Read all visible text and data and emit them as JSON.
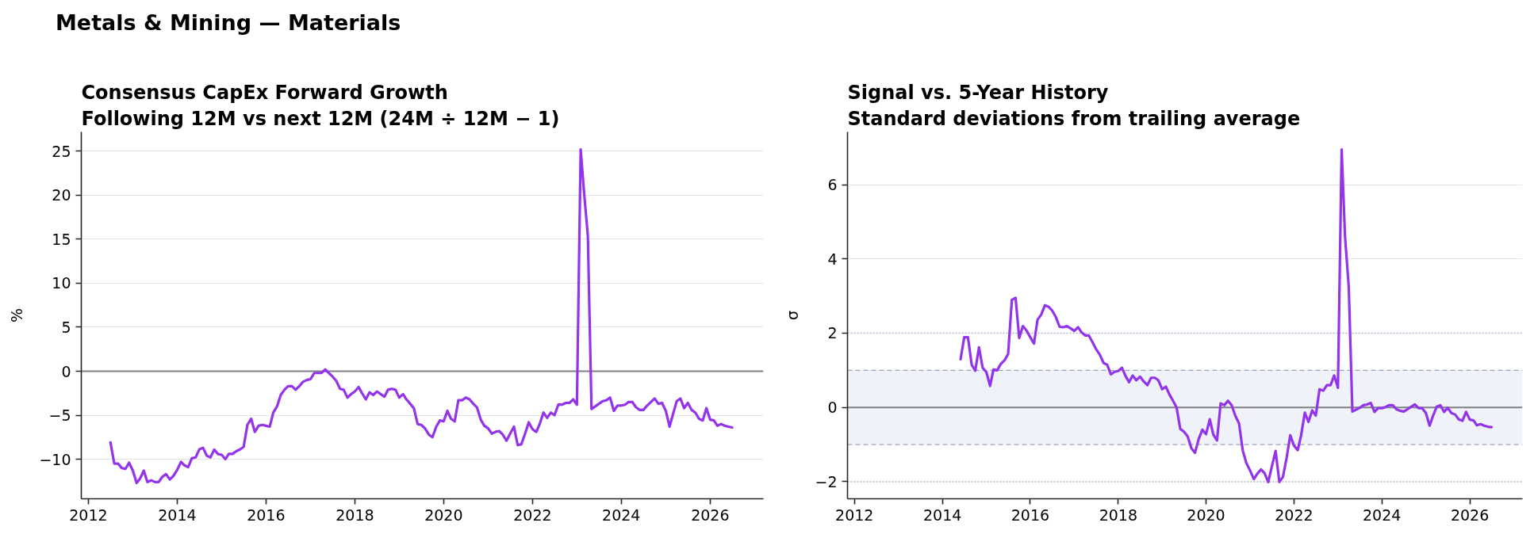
{
  "chart_data": [
    {
      "type": "line",
      "annotations": [
        "Metals & Mining — Materials"
      ],
      "title": "Consensus CapEx Forward Growth",
      "subtitle": "Following 12M vs next 12M (24M ÷ 12M − 1)",
      "ylabel": "%",
      "x": [
        "2012-07",
        "2012-08",
        "2012-09",
        "2012-10",
        "2012-11",
        "2012-12",
        "2013-01",
        "2013-02",
        "2013-03",
        "2013-04",
        "2013-05",
        "2013-06",
        "2013-07",
        "2013-08",
        "2013-09",
        "2013-10",
        "2013-11",
        "2013-12",
        "2014-01",
        "2014-02",
        "2014-03",
        "2014-04",
        "2014-05",
        "2014-06",
        "2014-07",
        "2014-08",
        "2014-09",
        "2014-10",
        "2014-11",
        "2014-12",
        "2015-01",
        "2015-02",
        "2015-03",
        "2015-04",
        "2015-05",
        "2015-06",
        "2015-07",
        "2015-08",
        "2015-09",
        "2015-10",
        "2015-11",
        "2015-12",
        "2016-01",
        "2016-02",
        "2016-03",
        "2016-04",
        "2016-05",
        "2016-06",
        "2016-07",
        "2016-08",
        "2016-09",
        "2016-10",
        "2016-11",
        "2016-12",
        "2017-01",
        "2017-02",
        "2017-03",
        "2017-04",
        "2017-05",
        "2017-06",
        "2017-07",
        "2017-08",
        "2017-09",
        "2017-10",
        "2017-11",
        "2017-12",
        "2018-01",
        "2018-02",
        "2018-03",
        "2018-04",
        "2018-05",
        "2018-06",
        "2018-07",
        "2018-08",
        "2018-09",
        "2018-10",
        "2018-11",
        "2018-12",
        "2019-01",
        "2019-02",
        "2019-03",
        "2019-04",
        "2019-05",
        "2019-06",
        "2019-07",
        "2019-08",
        "2019-09",
        "2019-10",
        "2019-11",
        "2019-12",
        "2020-01",
        "2020-02",
        "2020-03",
        "2020-04",
        "2020-05",
        "2020-06",
        "2020-07",
        "2020-08",
        "2020-09",
        "2020-10",
        "2020-11",
        "2020-12",
        "2021-01",
        "2021-02",
        "2021-03",
        "2021-04",
        "2021-05",
        "2021-06",
        "2021-07",
        "2021-08",
        "2021-09",
        "2021-10",
        "2021-11",
        "2021-12",
        "2022-01",
        "2022-02",
        "2022-03",
        "2022-04",
        "2022-05",
        "2022-06",
        "2022-07",
        "2022-08",
        "2022-09",
        "2022-10",
        "2022-11",
        "2022-12",
        "2023-01",
        "2023-02",
        "2023-03",
        "2023-04",
        "2023-05",
        "2023-06",
        "2023-07",
        "2023-08",
        "2023-09",
        "2023-10",
        "2023-11",
        "2023-12",
        "2024-01",
        "2024-02",
        "2024-03",
        "2024-04",
        "2024-05",
        "2024-06",
        "2024-07",
        "2024-08",
        "2024-09",
        "2024-10",
        "2024-11",
        "2024-12",
        "2025-01",
        "2025-02",
        "2025-03",
        "2025-04",
        "2025-05",
        "2025-06",
        "2025-07",
        "2025-08",
        "2025-09",
        "2025-10",
        "2025-11",
        "2025-12",
        "2026-01",
        "2026-02",
        "2026-03",
        "2026-04",
        "2026-05",
        "2026-06",
        "2026-07"
      ],
      "series": [
        {
          "color": "#9333ea",
          "values": [
            -8.1,
            -10.5,
            -10.5,
            -11.0,
            -11.1,
            -10.4,
            -11.3,
            -12.7,
            -12.2,
            -11.3,
            -12.6,
            -12.4,
            -12.6,
            -12.6,
            -12.0,
            -11.7,
            -12.3,
            -11.9,
            -11.2,
            -10.3,
            -10.7,
            -10.9,
            -9.9,
            -9.8,
            -8.9,
            -8.7,
            -9.6,
            -9.8,
            -8.9,
            -9.4,
            -9.5,
            -10.0,
            -9.4,
            -9.4,
            -9.1,
            -8.9,
            -8.6,
            -6.1,
            -5.4,
            -6.9,
            -6.2,
            -6.1,
            -6.2,
            -6.3,
            -4.7,
            -4.0,
            -2.7,
            -2.1,
            -1.7,
            -1.7,
            -2.1,
            -1.7,
            -1.2,
            -1.0,
            -0.9,
            -0.2,
            -0.2,
            -0.2,
            0.2,
            -0.2,
            -0.6,
            -1.1,
            -2.0,
            -2.1,
            -3.0,
            -2.6,
            -2.3,
            -1.8,
            -2.5,
            -3.2,
            -2.4,
            -2.7,
            -2.3,
            -2.6,
            -2.9,
            -2.1,
            -2.0,
            -2.1,
            -3.0,
            -2.6,
            -3.2,
            -3.7,
            -4.2,
            -6.0,
            -6.1,
            -6.5,
            -7.2,
            -7.5,
            -6.3,
            -5.6,
            -5.7,
            -4.5,
            -5.4,
            -5.7,
            -3.3,
            -3.3,
            -3.0,
            -3.2,
            -3.7,
            -4.1,
            -5.5,
            -6.2,
            -6.5,
            -7.1,
            -6.9,
            -6.8,
            -7.2,
            -7.9,
            -7.1,
            -6.3,
            -8.4,
            -8.3,
            -7.1,
            -5.8,
            -6.6,
            -6.9,
            -6.0,
            -4.7,
            -5.3,
            -4.7,
            -5.0,
            -3.8,
            -3.8,
            -3.6,
            -3.6,
            -3.2,
            -3.8,
            25.2,
            20.3,
            15.4,
            -4.3,
            -4.0,
            -3.7,
            -3.4,
            -3.3,
            -3.0,
            -4.5,
            -3.9,
            -3.9,
            -3.8,
            -3.5,
            -3.5,
            -4.1,
            -4.4,
            -4.4,
            -3.9,
            -3.5,
            -3.1,
            -3.7,
            -3.6,
            -4.5,
            -6.3,
            -4.9,
            -3.4,
            -3.1,
            -4.2,
            -3.6,
            -4.4,
            -4.7,
            -5.4,
            -5.6,
            -4.2,
            -5.5,
            -5.6,
            -6.2,
            -6.0,
            -6.2,
            -6.3,
            -6.4
          ]
        }
      ],
      "xlim": [
        "2011-11-04",
        "2027-03-15"
      ],
      "ylim": [
        -14.5,
        27.2
      ],
      "xticks": [
        "2012",
        "2014",
        "2016",
        "2018",
        "2020",
        "2022",
        "2024",
        "2026"
      ],
      "yticks": [
        {
          "value": -10,
          "label": "−10"
        },
        {
          "value": -5,
          "label": "−5"
        },
        0,
        5,
        10,
        15,
        20,
        25
      ],
      "grid": "y",
      "line_style": "solid",
      "ref_lines": [
        {
          "axis": "y",
          "value": 0,
          "color": "#7f7f86",
          "line_style": "solid"
        }
      ]
    },
    {
      "type": "line",
      "title": "Signal vs. 5-Year History",
      "subtitle": "Standard deviations from trailing average",
      "ylabel": "σ",
      "x": [
        "2014-06",
        "2014-07",
        "2014-08",
        "2014-09",
        "2014-10",
        "2014-11",
        "2014-12",
        "2015-01",
        "2015-02",
        "2015-03",
        "2015-04",
        "2015-05",
        "2015-06",
        "2015-07",
        "2015-08",
        "2015-09",
        "2015-10",
        "2015-11",
        "2015-12",
        "2016-01",
        "2016-02",
        "2016-03",
        "2016-04",
        "2016-05",
        "2016-06",
        "2016-07",
        "2016-08",
        "2016-09",
        "2016-10",
        "2016-11",
        "2016-12",
        "2017-01",
        "2017-02",
        "2017-03",
        "2017-04",
        "2017-05",
        "2017-06",
        "2017-07",
        "2017-08",
        "2017-09",
        "2017-10",
        "2017-11",
        "2017-12",
        "2018-01",
        "2018-02",
        "2018-03",
        "2018-04",
        "2018-05",
        "2018-06",
        "2018-07",
        "2018-08",
        "2018-09",
        "2018-10",
        "2018-11",
        "2018-12",
        "2019-01",
        "2019-02",
        "2019-03",
        "2019-04",
        "2019-05",
        "2019-06",
        "2019-07",
        "2019-08",
        "2019-09",
        "2019-10",
        "2019-11",
        "2019-12",
        "2020-01",
        "2020-02",
        "2020-03",
        "2020-04",
        "2020-05",
        "2020-06",
        "2020-07",
        "2020-08",
        "2020-09",
        "2020-10",
        "2020-11",
        "2020-12",
        "2021-01",
        "2021-02",
        "2021-03",
        "2021-04",
        "2021-05",
        "2021-06",
        "2021-07",
        "2021-08",
        "2021-09",
        "2021-10",
        "2021-11",
        "2021-12",
        "2022-01",
        "2022-02",
        "2022-03",
        "2022-04",
        "2022-05",
        "2022-06",
        "2022-07",
        "2022-08",
        "2022-09",
        "2022-10",
        "2022-11",
        "2022-12",
        "2023-01",
        "2023-02",
        "2023-03",
        "2023-04",
        "2023-05",
        "2023-06",
        "2023-07",
        "2023-08",
        "2023-09",
        "2023-10",
        "2023-11",
        "2023-12",
        "2024-01",
        "2024-02",
        "2024-03",
        "2024-04",
        "2024-05",
        "2024-06",
        "2024-07",
        "2024-08",
        "2024-09",
        "2024-10",
        "2024-11",
        "2024-12",
        "2025-01",
        "2025-02",
        "2025-03",
        "2025-04",
        "2025-05",
        "2025-06",
        "2025-07",
        "2025-08",
        "2025-09",
        "2025-10",
        "2025-11",
        "2025-12",
        "2026-01",
        "2026-02",
        "2026-03",
        "2026-04",
        "2026-05",
        "2026-06",
        "2026-07"
      ],
      "series": [
        {
          "color": "#9333ea",
          "values": [
            1.3,
            1.89,
            1.89,
            1.15,
            0.99,
            1.62,
            1.07,
            0.95,
            0.58,
            1.02,
            1.0,
            1.17,
            1.27,
            1.44,
            2.9,
            2.95,
            1.87,
            2.19,
            2.07,
            1.89,
            1.72,
            2.36,
            2.5,
            2.75,
            2.71,
            2.61,
            2.43,
            2.17,
            2.16,
            2.19,
            2.13,
            2.06,
            2.16,
            2.03,
            1.94,
            1.94,
            1.76,
            1.57,
            1.42,
            1.2,
            1.15,
            0.89,
            0.96,
            0.98,
            1.07,
            0.86,
            0.68,
            0.86,
            0.73,
            0.83,
            0.7,
            0.6,
            0.8,
            0.8,
            0.73,
            0.49,
            0.56,
            0.36,
            0.18,
            0.0,
            -0.58,
            -0.65,
            -0.78,
            -1.1,
            -1.22,
            -0.85,
            -0.6,
            -0.72,
            -0.32,
            -0.73,
            -0.89,
            0.11,
            0.06,
            0.18,
            0.06,
            -0.23,
            -0.43,
            -1.16,
            -1.5,
            -1.7,
            -1.93,
            -1.79,
            -1.67,
            -1.77,
            -2.01,
            -1.59,
            -1.17,
            -2.01,
            -1.87,
            -1.35,
            -0.75,
            -1.03,
            -1.15,
            -0.75,
            -0.14,
            -0.39,
            -0.08,
            -0.22,
            0.49,
            0.45,
            0.6,
            0.6,
            0.86,
            0.53,
            6.95,
            4.6,
            3.25,
            -0.11,
            -0.06,
            -0.01,
            0.06,
            0.08,
            0.12,
            -0.12,
            -0.02,
            -0.02,
            0.01,
            0.06,
            0.06,
            -0.05,
            -0.09,
            -0.11,
            -0.05,
            0.02,
            0.08,
            -0.02,
            -0.02,
            -0.15,
            -0.49,
            -0.23,
            0.02,
            0.06,
            -0.12,
            -0.01,
            -0.15,
            -0.19,
            -0.32,
            -0.36,
            -0.12,
            -0.33,
            -0.35,
            -0.48,
            -0.45,
            -0.49,
            -0.52,
            -0.53
          ]
        }
      ],
      "xlim": [
        "2011-11-04",
        "2027-03-15"
      ],
      "ylim": [
        -2.46,
        7.42
      ],
      "xticks": [
        "2012",
        "2014",
        "2016",
        "2018",
        "2020",
        "2022",
        "2024",
        "2026"
      ],
      "yticks": [
        {
          "value": -2,
          "label": "−2"
        },
        0,
        2,
        4,
        6
      ],
      "grid": "y",
      "line_style": "solid",
      "bands": [
        {
          "axis": "y",
          "from": -1,
          "to": 1,
          "color": "#eff2f8"
        }
      ],
      "ref_lines": [
        {
          "axis": "y",
          "value": 0,
          "color": "#7f7f86",
          "line_style": "solid"
        },
        {
          "axis": "y",
          "value": 1,
          "color": "#9aa3b5",
          "line_style": "dashed"
        },
        {
          "axis": "y",
          "value": -1,
          "color": "#9aa3b5",
          "line_style": "dashed"
        },
        {
          "axis": "y",
          "value": 2,
          "color": "#aab5c8",
          "line_style": "dotted"
        },
        {
          "axis": "y",
          "value": -2,
          "color": "#aab5c8",
          "line_style": "dotted"
        }
      ]
    }
  ]
}
